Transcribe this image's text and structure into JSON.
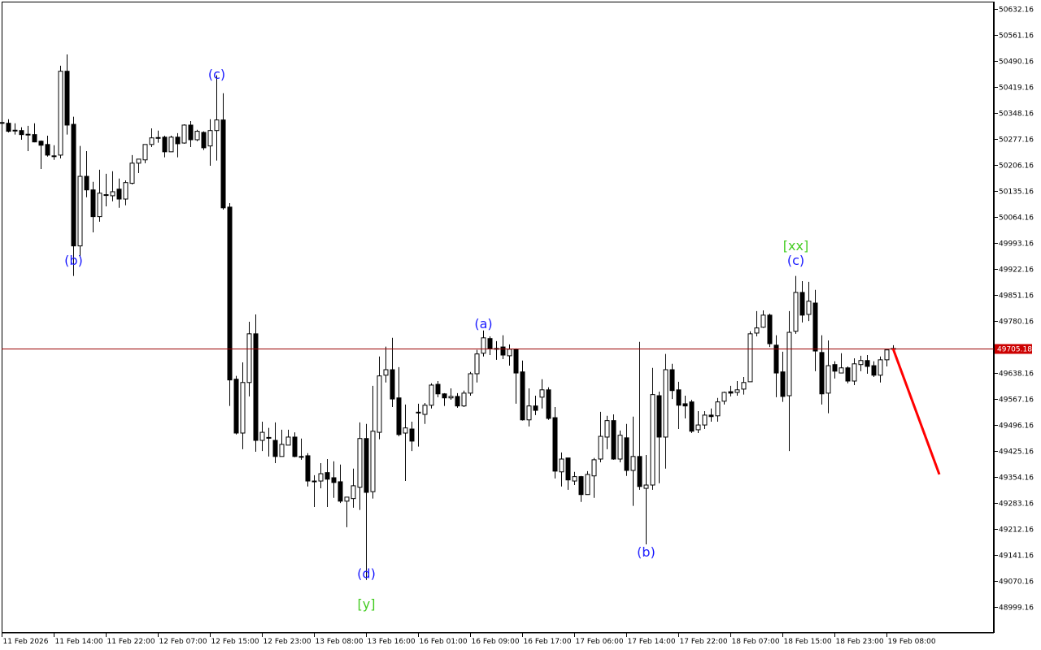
{
  "chart_data": {
    "type": "candlestick",
    "title": "",
    "colors": {
      "background": "#ffffff",
      "bull_body": "#ffffff",
      "bear_body": "#000000",
      "wick": "#000000",
      "current_price_line": "#990000",
      "price_badge": "#cc0000",
      "forecast": "#ff0000",
      "wave_label": "#1a1aff",
      "degree_label": "#44cc22"
    },
    "ylim": [
      48960,
      50660
    ],
    "yticks": [
      "50632.16",
      "50561.16",
      "50490.16",
      "50419.16",
      "50348.16",
      "50277.16",
      "50206.16",
      "50135.16",
      "50064.16",
      "49993.16",
      "49922.16",
      "49851.16",
      "49780.16",
      "49638.16",
      "49567.16",
      "49496.16",
      "49425.16",
      "49354.16",
      "49283.16",
      "49212.16",
      "49141.16",
      "49070.16",
      "48999.16"
    ],
    "ytick_values": [
      50632.16,
      50561.16,
      50490.16,
      50419.16,
      50348.16,
      50277.16,
      50206.16,
      50135.16,
      50064.16,
      49993.16,
      49922.16,
      49851.16,
      49780.16,
      49638.16,
      49567.16,
      49496.16,
      49425.16,
      49354.16,
      49283.16,
      49212.16,
      49141.16,
      49070.16,
      48999.16
    ],
    "xticks": [
      {
        "bar": 0,
        "label": "11 Feb 2026"
      },
      {
        "bar": 8,
        "label": "11 Feb 14:00"
      },
      {
        "bar": 16,
        "label": "11 Feb 22:00"
      },
      {
        "bar": 24,
        "label": "12 Feb 07:00"
      },
      {
        "bar": 32,
        "label": "12 Feb 15:00"
      },
      {
        "bar": 40,
        "label": "12 Feb 23:00"
      },
      {
        "bar": 48,
        "label": "13 Feb 08:00"
      },
      {
        "bar": 56,
        "label": "13 Feb 16:00"
      },
      {
        "bar": 64,
        "label": "16 Feb 01:00"
      },
      {
        "bar": 72,
        "label": "16 Feb 09:00"
      },
      {
        "bar": 80,
        "label": "16 Feb 17:00"
      },
      {
        "bar": 88,
        "label": "17 Feb 06:00"
      },
      {
        "bar": 96,
        "label": "17 Feb 14:00"
      },
      {
        "bar": 104,
        "label": "17 Feb 22:00"
      },
      {
        "bar": 112,
        "label": "18 Feb 07:00"
      },
      {
        "bar": 120,
        "label": "18 Feb 15:00"
      },
      {
        "bar": 128,
        "label": "18 Feb 23:00"
      },
      {
        "bar": 136,
        "label": "19 Feb 08:00"
      }
    ],
    "current_price": 49705.18,
    "current_price_label": "49705.18",
    "forecast": {
      "from_bar": 137,
      "from_price": 49705,
      "to_bar": 144,
      "to_price": 49361
    },
    "wave_labels": [
      {
        "text": "(b)",
        "bar": 11,
        "price": 49947,
        "kind": "wave"
      },
      {
        "text": "(c)",
        "bar": 33,
        "price": 50455,
        "kind": "wave"
      },
      {
        "text": "(d)",
        "bar": 56,
        "price": 49091,
        "kind": "wave"
      },
      {
        "text": "[y]",
        "bar": 56,
        "price": 49008,
        "kind": "degree"
      },
      {
        "text": "(a)",
        "bar": 74,
        "price": 49774,
        "kind": "wave"
      },
      {
        "text": "(b)",
        "bar": 99,
        "price": 49150,
        "kind": "wave"
      },
      {
        "text": "(c)",
        "bar": 122,
        "price": 49947,
        "kind": "wave"
      },
      {
        "text": "[xx]",
        "bar": 122,
        "price": 49987,
        "kind": "degree"
      }
    ],
    "ohlc": [
      [
        50322,
        50324,
        50320,
        50321
      ],
      [
        50320,
        50331,
        50295,
        50298
      ],
      [
        50300,
        50320,
        50289,
        50301
      ],
      [
        50300,
        50309,
        50275,
        50289
      ],
      [
        50290,
        50313,
        50244,
        50289
      ],
      [
        50289,
        50320,
        50268,
        50269
      ],
      [
        50271,
        50273,
        50195,
        50260
      ],
      [
        50262,
        50286,
        50229,
        50233
      ],
      [
        50231,
        50260,
        50220,
        50230
      ],
      [
        50233,
        50477,
        50224,
        50462
      ],
      [
        50462,
        50508,
        50289,
        50315
      ],
      [
        50317,
        50338,
        49903,
        49985
      ],
      [
        49985,
        50258,
        49954,
        50175
      ],
      [
        50175,
        50244,
        50118,
        50138
      ],
      [
        50138,
        50160,
        50022,
        50065
      ],
      [
        50065,
        50193,
        50051,
        50129
      ],
      [
        50125,
        50182,
        50093,
        50124
      ],
      [
        50122,
        50189,
        50107,
        50133
      ],
      [
        50140,
        50169,
        50089,
        50113
      ],
      [
        50113,
        50164,
        50096,
        50158
      ],
      [
        50156,
        50233,
        50153,
        50211
      ],
      [
        50211,
        50222,
        50184,
        50222
      ],
      [
        50220,
        50262,
        50211,
        50262
      ],
      [
        50262,
        50306,
        50255,
        50280
      ],
      [
        50280,
        50300,
        50267,
        50281
      ],
      [
        50282,
        50286,
        50227,
        50242
      ],
      [
        50242,
        50286,
        50242,
        50282
      ],
      [
        50282,
        50293,
        50227,
        50264
      ],
      [
        50266,
        50317,
        50264,
        50315
      ],
      [
        50315,
        50326,
        50255,
        50275
      ],
      [
        50275,
        50302,
        50271,
        50298
      ],
      [
        50295,
        50298,
        50247,
        50253
      ],
      [
        50258,
        50331,
        50204,
        50300
      ],
      [
        50300,
        50451,
        50218,
        50329
      ],
      [
        50329,
        50402,
        50084,
        50089
      ],
      [
        50091,
        50102,
        49548,
        49619
      ],
      [
        49621,
        49630,
        49470,
        49474
      ],
      [
        49474,
        49667,
        49430,
        49612
      ],
      [
        49612,
        49778,
        49574,
        49745
      ],
      [
        49745,
        49798,
        49423,
        49454
      ],
      [
        49454,
        49505,
        49425,
        49476
      ],
      [
        49462,
        49488,
        49410,
        49461
      ],
      [
        49454,
        49503,
        49392,
        49410
      ],
      [
        49410,
        49483,
        49410,
        49443
      ],
      [
        49441,
        49483,
        49441,
        49463
      ],
      [
        49463,
        49476,
        49408,
        49410
      ],
      [
        49410,
        49459,
        49401,
        49409
      ],
      [
        49412,
        49419,
        49328,
        49343
      ],
      [
        49343,
        49359,
        49272,
        49342
      ],
      [
        49343,
        49392,
        49323,
        49363
      ],
      [
        49366,
        49403,
        49272,
        49348
      ],
      [
        49352,
        49397,
        49297,
        49339
      ],
      [
        49341,
        49388,
        49283,
        49288
      ],
      [
        49288,
        49299,
        49217,
        49299
      ],
      [
        49295,
        49377,
        49270,
        49330
      ],
      [
        49326,
        49503,
        49264,
        49459
      ],
      [
        49459,
        49499,
        49073,
        49312
      ],
      [
        49314,
        49603,
        49295,
        49479
      ],
      [
        49476,
        49683,
        49457,
        49630
      ],
      [
        49632,
        49710,
        49612,
        49647
      ],
      [
        49647,
        49734,
        49545,
        49567
      ],
      [
        49570,
        49654,
        49465,
        49470
      ],
      [
        49474,
        49552,
        49343,
        49488
      ],
      [
        49485,
        49505,
        49425,
        49452
      ],
      [
        49530,
        49554,
        49437,
        49531
      ],
      [
        49525,
        49556,
        49499,
        49550
      ],
      [
        49550,
        49610,
        49541,
        49605
      ],
      [
        49607,
        49616,
        49572,
        49581
      ],
      [
        49581,
        49583,
        49548,
        49570
      ],
      [
        49570,
        49596,
        49565,
        49574
      ],
      [
        49574,
        49583,
        49543,
        49548
      ],
      [
        49548,
        49590,
        49545,
        49583
      ],
      [
        49583,
        49641,
        49576,
        49636
      ],
      [
        49636,
        49701,
        49612,
        49690
      ],
      [
        49692,
        49754,
        49683,
        49734
      ],
      [
        49732,
        49738,
        49687,
        49705
      ],
      [
        49705,
        49725,
        49674,
        49704
      ],
      [
        49709,
        49741,
        49676,
        49687
      ],
      [
        49685,
        49716,
        49658,
        49703
      ],
      [
        49703,
        49705,
        49554,
        49638
      ],
      [
        49641,
        49672,
        49508,
        49510
      ],
      [
        49510,
        49596,
        49492,
        49548
      ],
      [
        49548,
        49576,
        49523,
        49536
      ],
      [
        49572,
        49621,
        49541,
        49592
      ],
      [
        49592,
        49599,
        49510,
        49514
      ],
      [
        49516,
        49545,
        49350,
        49370
      ],
      [
        49368,
        49421,
        49328,
        49403
      ],
      [
        49406,
        49406,
        49319,
        49346
      ],
      [
        49343,
        49368,
        49332,
        49355
      ],
      [
        49355,
        49357,
        49286,
        49306
      ],
      [
        49306,
        49370,
        49306,
        49361
      ],
      [
        49357,
        49406,
        49297,
        49401
      ],
      [
        49403,
        49532,
        49394,
        49465
      ],
      [
        49463,
        49521,
        49430,
        49508
      ],
      [
        49508,
        49525,
        49401,
        49403
      ],
      [
        49403,
        49481,
        49394,
        49468
      ],
      [
        49461,
        49499,
        49357,
        49372
      ],
      [
        49372,
        49519,
        49275,
        49410
      ],
      [
        49410,
        49723,
        49319,
        49328
      ],
      [
        49323,
        49414,
        49170,
        49332
      ],
      [
        49332,
        49652,
        49319,
        49579
      ],
      [
        49576,
        49587,
        49337,
        49463
      ],
      [
        49463,
        49690,
        49377,
        49647
      ],
      [
        49647,
        49663,
        49567,
        49590
      ],
      [
        49592,
        49614,
        49485,
        49550
      ],
      [
        49554,
        49576,
        49514,
        49548
      ],
      [
        49559,
        49565,
        49474,
        49479
      ],
      [
        49483,
        49534,
        49474,
        49496
      ],
      [
        49496,
        49534,
        49485,
        49523
      ],
      [
        49523,
        49541,
        49505,
        49519
      ],
      [
        49521,
        49570,
        49505,
        49559
      ],
      [
        49561,
        49587,
        49552,
        49585
      ],
      [
        49587,
        49603,
        49574,
        49583
      ],
      [
        49585,
        49616,
        49576,
        49592
      ],
      [
        49594,
        49627,
        49579,
        49612
      ],
      [
        49614,
        49752,
        49614,
        49745
      ],
      [
        49747,
        49807,
        49738,
        49761
      ],
      [
        49763,
        49809,
        49761,
        49796
      ],
      [
        49796,
        49800,
        49709,
        49718
      ],
      [
        49714,
        49741,
        49572,
        49638
      ],
      [
        49641,
        49696,
        49559,
        49574
      ],
      [
        49576,
        49807,
        49425,
        49749
      ],
      [
        49752,
        49903,
        49745,
        49858
      ],
      [
        49858,
        49889,
        49776,
        49796
      ],
      [
        49798,
        49887,
        49780,
        49834
      ],
      [
        49829,
        49865,
        49643,
        49698
      ],
      [
        49694,
        49741,
        49552,
        49581
      ],
      [
        49583,
        49727,
        49528,
        49658
      ],
      [
        49661,
        49670,
        49623,
        49643
      ],
      [
        49638,
        49692,
        49638,
        49652
      ],
      [
        49652,
        49656,
        49610,
        49616
      ],
      [
        49616,
        49678,
        49605,
        49663
      ],
      [
        49661,
        49685,
        49643,
        49672
      ],
      [
        49672,
        49687,
        49636,
        49656
      ],
      [
        49658,
        49670,
        49627,
        49632
      ],
      [
        49632,
        49683,
        49612,
        49674
      ],
      [
        49674,
        49701,
        49656,
        49701
      ],
      [
        49705,
        49714,
        49705,
        49705
      ]
    ]
  }
}
